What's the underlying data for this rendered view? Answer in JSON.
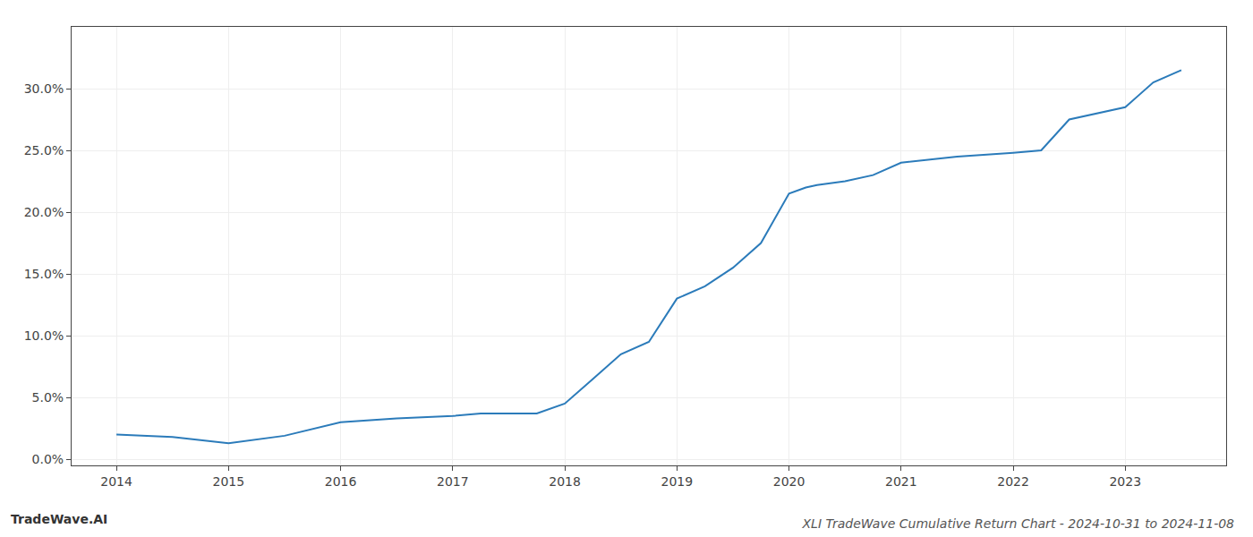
{
  "chart_data": {
    "type": "line",
    "title": "XLI TradeWave Cumulative Return Chart - 2024-10-31 to 2024-11-08",
    "annotations": [
      "TradeWave.AI"
    ],
    "x": [
      2014.0,
      2014.5,
      2015.0,
      2015.5,
      2016.0,
      2016.5,
      2017.0,
      2017.25,
      2017.75,
      2018.0,
      2018.25,
      2018.5,
      2018.75,
      2019.0,
      2019.25,
      2019.5,
      2019.75,
      2020.0,
      2020.15,
      2020.25,
      2020.5,
      2020.75,
      2021.0,
      2021.5,
      2022.0,
      2022.25,
      2022.5,
      2022.75,
      2023.0,
      2023.25,
      2023.5
    ],
    "values": [
      2.0,
      1.8,
      1.3,
      1.9,
      3.0,
      3.3,
      3.5,
      3.7,
      3.7,
      4.5,
      6.5,
      8.5,
      9.5,
      13.0,
      14.0,
      15.5,
      17.5,
      21.5,
      22.0,
      22.2,
      22.5,
      23.0,
      24.0,
      24.5,
      24.8,
      25.0,
      27.5,
      28.0,
      28.5,
      30.5,
      31.5
    ],
    "color": "#2b7bba",
    "xlim": [
      2013.6,
      2023.9
    ],
    "ylim": [
      -0.5,
      35.0
    ],
    "xticks": [
      2014,
      2015,
      2016,
      2017,
      2018,
      2019,
      2020,
      2021,
      2022,
      2023
    ],
    "yticks": [
      {
        "value": 0.0,
        "label": "0.0%"
      },
      {
        "value": 5.0,
        "label": "5.0%"
      },
      {
        "value": 10.0,
        "label": "10.0%"
      },
      {
        "value": 15.0,
        "label": "15.0%"
      },
      {
        "value": 20.0,
        "label": "20.0%"
      },
      {
        "value": 25.0,
        "label": "25.0%"
      },
      {
        "value": 30.0,
        "label": "30.0%"
      }
    ],
    "grid": true
  }
}
